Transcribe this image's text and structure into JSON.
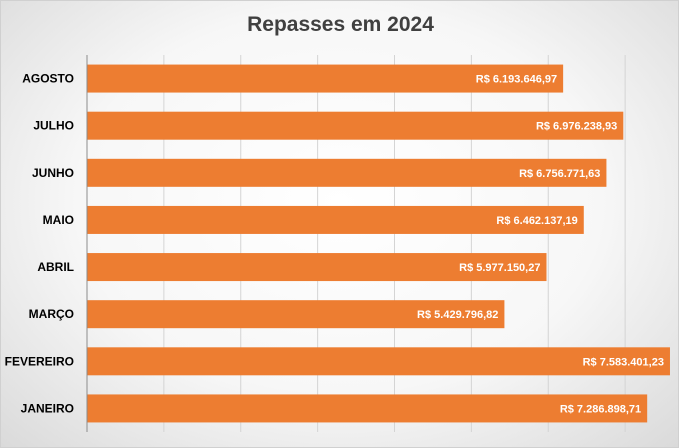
{
  "chart_data": {
    "type": "bar",
    "orientation": "horizontal",
    "title": "Repasses em 2024",
    "categories": [
      "JANEIRO",
      "FEVEREIRO",
      "MARÇO",
      "ABRIL",
      "MAIO",
      "JUNHO",
      "JULHO",
      "AGOSTO"
    ],
    "values": [
      7286898.71,
      7583401.23,
      5429796.82,
      5977150.27,
      6462137.19,
      6756771.63,
      6976238.93,
      6193646.97
    ],
    "data_labels": [
      "R$ 7.286.898,71",
      "R$ 7.583.401,23",
      "R$ 5.429.796,82",
      "R$ 5.977.150,27",
      "R$ 6.462.137,19",
      "R$ 6.756.771,63",
      "R$ 6.976.238,93",
      "R$ 6.193.646,97"
    ],
    "xlim": [
      0,
      8000000
    ],
    "grid": true,
    "legend": "none",
    "xlabel": "",
    "ylabel": "",
    "bar_color": "#ED7D31",
    "grid_color": "#d4d4d4"
  }
}
